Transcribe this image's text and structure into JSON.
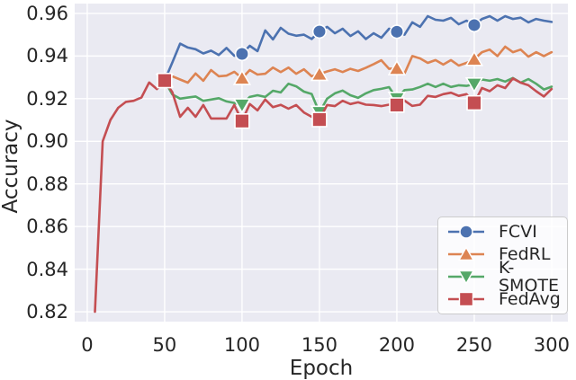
{
  "figure": {
    "background": "#ffffff",
    "plot_background": "#eaeaf2",
    "grid_color": "#ffffff",
    "text_color": "#262626",
    "legend_border_color": "#cccccc"
  },
  "chart_data": {
    "type": "line",
    "title": "",
    "xlabel": "Epoch",
    "ylabel": "Accuracy",
    "xlim": [
      -8.1,
      310.5
    ],
    "ylim": [
      0.8154,
      0.9646
    ],
    "grid": true,
    "legend_position": "lower right",
    "x_ticks": [
      {
        "v": 0,
        "label": "0"
      },
      {
        "v": 50,
        "label": "50"
      },
      {
        "v": 100,
        "label": "100"
      },
      {
        "v": 150,
        "label": "150"
      },
      {
        "v": 200,
        "label": "200"
      },
      {
        "v": 250,
        "label": "250"
      },
      {
        "v": 300,
        "label": "300"
      }
    ],
    "y_ticks": [
      {
        "v": 0.82,
        "label": "0.82"
      },
      {
        "v": 0.84,
        "label": "0.84"
      },
      {
        "v": 0.86,
        "label": "0.86"
      },
      {
        "v": 0.88,
        "label": "0.88"
      },
      {
        "v": 0.9,
        "label": "0.90"
      },
      {
        "v": 0.92,
        "label": "0.92"
      },
      {
        "v": 0.94,
        "label": "0.94"
      },
      {
        "v": 0.96,
        "label": "0.96"
      }
    ],
    "marker_x": [
      50,
      100,
      150,
      200,
      250
    ],
    "series": [
      {
        "name": "FCVI",
        "color": "#4c72b0",
        "marker": "circle",
        "x": [
          50,
          55,
          60,
          65,
          70,
          75,
          80,
          85,
          90,
          95,
          100,
          105,
          110,
          115,
          120,
          125,
          130,
          135,
          140,
          145,
          150,
          155,
          160,
          165,
          170,
          175,
          180,
          185,
          190,
          195,
          200,
          205,
          210,
          215,
          220,
          225,
          230,
          235,
          240,
          245,
          250,
          255,
          260,
          265,
          270,
          275,
          280,
          285,
          290,
          295,
          300
        ],
        "y": [
          0.9285,
          0.937,
          0.9458,
          0.944,
          0.9432,
          0.9412,
          0.9425,
          0.9405,
          0.9438,
          0.9401,
          0.941,
          0.9448,
          0.9423,
          0.952,
          0.9478,
          0.9532,
          0.9505,
          0.9495,
          0.95,
          0.948,
          0.9515,
          0.9537,
          0.9507,
          0.9528,
          0.9494,
          0.9516,
          0.948,
          0.9507,
          0.9486,
          0.9528,
          0.9514,
          0.95,
          0.9558,
          0.9537,
          0.9587,
          0.957,
          0.9566,
          0.9579,
          0.9549,
          0.9566,
          0.9545,
          0.9574,
          0.9587,
          0.9566,
          0.9587,
          0.9574,
          0.958,
          0.9558,
          0.9574,
          0.9566,
          0.956
        ]
      },
      {
        "name": "FedRL",
        "color": "#dd8452",
        "marker": "triangle-up",
        "x": [
          50,
          55,
          60,
          65,
          70,
          75,
          80,
          85,
          90,
          95,
          100,
          105,
          110,
          115,
          120,
          125,
          130,
          135,
          140,
          145,
          150,
          155,
          160,
          165,
          170,
          175,
          180,
          185,
          190,
          195,
          200,
          205,
          210,
          215,
          220,
          225,
          230,
          235,
          240,
          245,
          250,
          255,
          260,
          265,
          270,
          275,
          280,
          285,
          290,
          295,
          300
        ],
        "y": [
          0.9285,
          0.9305,
          0.929,
          0.9275,
          0.9318,
          0.9284,
          0.9334,
          0.9305,
          0.9308,
          0.9326,
          0.9296,
          0.9334,
          0.9313,
          0.9317,
          0.9346,
          0.9325,
          0.9346,
          0.9317,
          0.9338,
          0.9305,
          0.9315,
          0.9328,
          0.9338,
          0.9325,
          0.934,
          0.933,
          0.9345,
          0.9362,
          0.938,
          0.934,
          0.9342,
          0.9318,
          0.94,
          0.9389,
          0.9368,
          0.9381,
          0.936,
          0.9381,
          0.9355,
          0.9368,
          0.9385,
          0.9418,
          0.943,
          0.94,
          0.9444,
          0.9418,
          0.943,
          0.9397,
          0.9418,
          0.94,
          0.9418
        ]
      },
      {
        "name": "K-SMOTE",
        "color": "#55a868",
        "marker": "triangle-down",
        "x": [
          50,
          55,
          60,
          65,
          70,
          75,
          80,
          85,
          90,
          95,
          100,
          105,
          110,
          115,
          120,
          125,
          130,
          135,
          140,
          145,
          150,
          155,
          160,
          165,
          170,
          175,
          180,
          185,
          190,
          195,
          200,
          205,
          210,
          215,
          220,
          225,
          230,
          235,
          240,
          245,
          250,
          255,
          260,
          265,
          270,
          275,
          280,
          285,
          290,
          295,
          300
        ],
        "y": [
          0.9285,
          0.922,
          0.92,
          0.9205,
          0.921,
          0.919,
          0.9196,
          0.9202,
          0.9187,
          0.918,
          0.917,
          0.9208,
          0.9216,
          0.9208,
          0.9237,
          0.9229,
          0.927,
          0.9258,
          0.9233,
          0.9222,
          0.9135,
          0.92,
          0.9225,
          0.9238,
          0.9216,
          0.9204,
          0.9225,
          0.924,
          0.9246,
          0.9254,
          0.92,
          0.924,
          0.9243,
          0.9255,
          0.927,
          0.9255,
          0.927,
          0.9255,
          0.9263,
          0.926,
          0.9268,
          0.929,
          0.9284,
          0.9292,
          0.928,
          0.9297,
          0.9275,
          0.9292,
          0.927,
          0.9243,
          0.9256
        ]
      },
      {
        "name": "FedAvg",
        "color": "#c44e52",
        "marker": "square",
        "x": [
          5,
          10,
          15,
          20,
          25,
          30,
          35,
          40,
          45,
          50,
          55,
          60,
          65,
          70,
          75,
          80,
          85,
          90,
          95,
          100,
          105,
          110,
          115,
          120,
          125,
          130,
          135,
          140,
          145,
          150,
          155,
          160,
          165,
          170,
          175,
          180,
          185,
          190,
          195,
          200,
          205,
          210,
          215,
          220,
          225,
          230,
          235,
          240,
          245,
          250,
          255,
          260,
          265,
          270,
          275,
          280,
          285,
          290,
          295,
          300
        ],
        "y": [
          0.82,
          0.9,
          0.91,
          0.9157,
          0.9185,
          0.919,
          0.9205,
          0.9276,
          0.9245,
          0.9285,
          0.923,
          0.9115,
          0.9157,
          0.9115,
          0.917,
          0.9107,
          0.9107,
          0.9107,
          0.917,
          0.9095,
          0.9175,
          0.9145,
          0.9196,
          0.916,
          0.9171,
          0.9153,
          0.917,
          0.9135,
          0.9115,
          0.9102,
          0.917,
          0.9165,
          0.919,
          0.9175,
          0.9183,
          0.9172,
          0.917,
          0.9165,
          0.9172,
          0.917,
          0.9191,
          0.9166,
          0.9172,
          0.9213,
          0.9208,
          0.9221,
          0.9228,
          0.9213,
          0.9221,
          0.918,
          0.925,
          0.9235,
          0.9263,
          0.925,
          0.9295,
          0.9275,
          0.9263,
          0.9235,
          0.921,
          0.9245
        ]
      }
    ]
  }
}
